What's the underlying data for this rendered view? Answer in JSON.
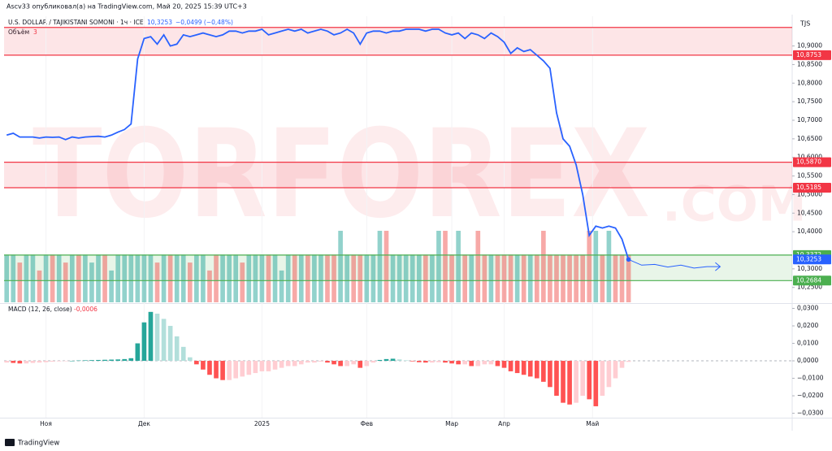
{
  "header": {
    "author_line": "Ascv33 опубликовал(а) на TradingView.com, Май 20, 2025 15:39 UTC+3",
    "symbol": "U.S. DOLLAR / TAJIKISTANI SOMONI · 1ч · ICE",
    "change": "−0,0499 (−0,48%)",
    "currency": "TJS",
    "volume_title": "Объём",
    "volume_value": "3",
    "macd_title": "MACD (12, 26, close)",
    "macd_value": "-0,0006",
    "footer": "TradingView",
    "watermark": "TORFOREX",
    "watermark_suffix": ".COM"
  },
  "chart_data": [
    {
      "type": "line",
      "color": "#2962ff",
      "last": {
        "value": 10.3253,
        "label": "10,3253"
      },
      "xlim": [
        -0.4,
        120
      ],
      "xticks": [
        {
          "value": 6,
          "label": "Ноя"
        },
        {
          "value": 21,
          "label": "Дек"
        },
        {
          "value": 39,
          "label": "2025"
        },
        {
          "value": 55,
          "label": "Фев"
        },
        {
          "value": 68,
          "label": "Мар"
        },
        {
          "value": 76,
          "label": "Апр"
        },
        {
          "value": 89.5,
          "label": "Май"
        }
      ],
      "ylim": [
        10.21,
        10.98
      ],
      "yticks": [
        {
          "value": 10.9,
          "label": "10,9000"
        },
        {
          "value": 10.85,
          "label": "10,8500"
        },
        {
          "value": 10.8,
          "label": "10,8000"
        },
        {
          "value": 10.75,
          "label": "10,7500"
        },
        {
          "value": 10.7,
          "label": "10,7000"
        },
        {
          "value": 10.65,
          "label": "10,6500"
        },
        {
          "value": 10.6,
          "label": "10,6000"
        },
        {
          "value": 10.55,
          "label": "10,5500"
        },
        {
          "value": 10.5,
          "label": "10,5000"
        },
        {
          "value": 10.45,
          "label": "10,4500"
        },
        {
          "value": 10.4,
          "label": "10,4000"
        },
        {
          "value": 10.3,
          "label": "10,3000"
        },
        {
          "value": 10.25,
          "label": "10,2500"
        }
      ],
      "levels": [
        {
          "value": 10.95,
          "color": "#f23645"
        },
        {
          "value": 10.8753,
          "label": "10,8753",
          "color": "#f23645"
        },
        {
          "value": 10.587,
          "label": "10,5870",
          "color": "#f23645"
        },
        {
          "value": 10.5185,
          "label": "10,5185",
          "color": "#f23645"
        },
        {
          "value": 10.3372,
          "label": "10,3372",
          "color": "#4caf50"
        },
        {
          "value": 10.2684,
          "label": "10,2684",
          "color": "#4caf50"
        }
      ],
      "zones": [
        {
          "from": 10.8753,
          "to": 10.95,
          "color": "rgba(242,54,69,0.13)"
        },
        {
          "from": 10.5185,
          "to": 10.587,
          "color": "rgba(242,54,69,0.13)"
        },
        {
          "from": 10.2684,
          "to": 10.3372,
          "color": "rgba(76,175,80,0.13)"
        }
      ],
      "values": [
        10.66,
        10.665,
        10.655,
        10.655,
        10.655,
        10.652,
        10.655,
        10.654,
        10.655,
        10.648,
        10.655,
        10.652,
        10.655,
        10.656,
        10.657,
        10.655,
        10.66,
        10.668,
        10.675,
        10.69,
        10.865,
        10.92,
        10.925,
        10.905,
        10.93,
        10.9,
        10.905,
        10.93,
        10.925,
        10.93,
        10.935,
        10.93,
        10.925,
        10.93,
        10.94,
        10.94,
        10.935,
        10.94,
        10.94,
        10.945,
        10.93,
        10.935,
        10.94,
        10.945,
        10.94,
        10.945,
        10.935,
        10.94,
        10.945,
        10.94,
        10.93,
        10.935,
        10.945,
        10.935,
        10.905,
        10.935,
        10.94,
        10.94,
        10.935,
        10.94,
        10.94,
        10.945,
        10.945,
        10.945,
        10.94,
        10.945,
        10.945,
        10.935,
        10.93,
        10.935,
        10.92,
        10.935,
        10.93,
        10.92,
        10.935,
        10.925,
        10.91,
        10.88,
        10.895,
        10.885,
        10.89,
        10.875,
        10.86,
        10.84,
        10.72,
        10.65,
        10.63,
        10.58,
        10.5,
        10.39,
        10.415,
        10.41,
        10.415,
        10.41,
        10.38,
        10.3253
      ],
      "forecast": {
        "x": [
          95,
          97,
          99,
          101,
          103,
          105,
          107,
          109
        ],
        "values": [
          10.3253,
          10.31,
          10.312,
          10.305,
          10.31,
          10.302,
          10.306,
          10.306
        ]
      },
      "volume": {
        "ylim": [
          0,
          18
        ],
        "up_color": "rgba(38,166,154,0.5)",
        "down_color": "rgba(239,83,80,0.5)",
        "values": [
          3,
          3,
          2.5,
          3,
          3,
          2,
          3,
          3,
          3,
          2.5,
          3,
          3,
          3,
          2.5,
          3,
          3,
          2,
          3,
          3,
          3,
          3,
          3,
          3,
          2.5,
          3,
          3,
          3,
          3,
          2.5,
          3,
          3,
          2,
          3,
          3,
          3,
          3,
          2.5,
          3,
          3,
          3,
          3,
          3,
          2,
          3,
          3,
          3,
          3,
          3,
          3,
          3,
          3,
          4.5,
          3,
          3,
          3,
          3,
          3,
          4.5,
          4.5,
          3,
          3,
          3,
          3,
          3,
          3,
          3,
          4.5,
          4.5,
          3,
          4.5,
          3,
          3,
          4.5,
          3,
          3,
          3,
          3,
          3,
          3,
          3,
          3,
          3,
          4.5,
          3,
          3,
          3,
          3,
          3,
          3,
          4.5,
          4.5,
          3,
          4.5,
          3,
          3,
          3
        ]
      }
    },
    {
      "type": "histogram",
      "ylim": [
        -0.033,
        0.0321
      ],
      "yticks": [
        {
          "value": 0.03,
          "label": "0,0300"
        },
        {
          "value": 0.02,
          "label": "0,0200"
        },
        {
          "value": 0.01,
          "label": "0,0100"
        },
        {
          "value": 0,
          "label": "0,0000"
        },
        {
          "value": -0.01,
          "label": "−0,0100"
        },
        {
          "value": -0.02,
          "label": "−0,0200"
        },
        {
          "value": -0.03,
          "label": "−0,0300"
        }
      ],
      "colors": {
        "pos_up": "#26a69a",
        "pos_down": "#b2dfdb",
        "neg_down": "#ff5252",
        "neg_up": "#ffcdd2"
      },
      "values": [
        -0.001,
        -0.0012,
        -0.0015,
        -0.0015,
        -0.0012,
        -0.001,
        -0.0008,
        -0.0005,
        -0.0003,
        -0.0002,
        0,
        0.0002,
        0.0003,
        0.0004,
        0.0005,
        0.0006,
        0.0007,
        0.0008,
        0.001,
        0.0015,
        0.01,
        0.022,
        0.028,
        0.027,
        0.024,
        0.02,
        0.014,
        0.008,
        0.002,
        -0.002,
        -0.005,
        -0.008,
        -0.01,
        -0.011,
        -0.011,
        -0.01,
        -0.009,
        -0.008,
        -0.007,
        -0.006,
        -0.006,
        -0.005,
        -0.004,
        -0.003,
        -0.003,
        -0.002,
        -0.001,
        -0.001,
        -0.0005,
        -0.001,
        -0.002,
        -0.003,
        -0.003,
        -0.002,
        -0.004,
        -0.003,
        -0.001,
        0.0005,
        0.001,
        0.0012,
        0.0008,
        0.0003,
        -0.0003,
        -0.0008,
        -0.001,
        -0.001,
        -0.0008,
        -0.001,
        -0.0015,
        -0.002,
        -0.002,
        -0.003,
        -0.003,
        -0.002,
        -0.002,
        -0.003,
        -0.004,
        -0.006,
        -0.007,
        -0.008,
        -0.009,
        -0.01,
        -0.012,
        -0.015,
        -0.02,
        -0.024,
        -0.025,
        -0.024,
        -0.02,
        -0.022,
        -0.026,
        -0.02,
        -0.015,
        -0.01,
        -0.004,
        -0.0006
      ]
    }
  ]
}
